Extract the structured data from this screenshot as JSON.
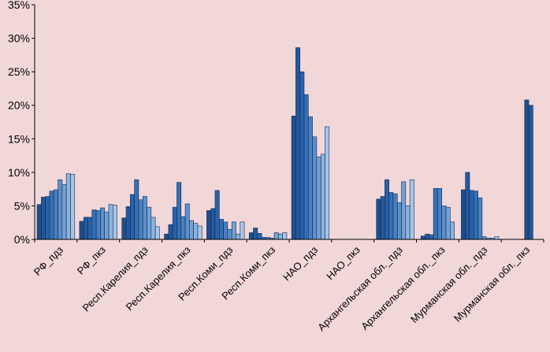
{
  "chart_data": {
    "type": "bar",
    "ylim": [
      0,
      35
    ],
    "yticks": [
      "0%",
      "5%",
      "10%",
      "15%",
      "20%",
      "25%",
      "30%",
      "35%"
    ],
    "categories": [
      "РФ_пдз",
      "РФ_пкз",
      "Респ.Карелия_пдз",
      "Респ.Карелия_пкз",
      "Респ.Коми_пдз",
      "Респ.Коми_пкз",
      "НАО_пдз",
      "НАО_пкз",
      "Архангельская обл._пдз",
      "Архангельская обл._пкз",
      "Мурманская обл._пдз",
      "Мурманская обл._пкз"
    ],
    "series_colors": [
      "#1f4e8c",
      "#24589a",
      "#2a62a8",
      "#3570b5",
      "#4a80c0",
      "#5d90ca",
      "#75a2d3",
      "#8db4dc",
      "#a8c6e5",
      "#c3d8ee"
    ],
    "values": [
      [
        5.2,
        6.3,
        6.4,
        7.2,
        7.4,
        8.9,
        8.2,
        9.8,
        9.7
      ],
      [
        2.7,
        3.3,
        3.3,
        4.4,
        4.3,
        4.7,
        4.1,
        5.2,
        5.1
      ],
      [
        3.2,
        4.9,
        6.7,
        8.9,
        5.9,
        6.4,
        4.8,
        3.3,
        1.9
      ],
      [
        0.8,
        2.2,
        4.8,
        8.5,
        3.4,
        5.3,
        2.8,
        2.4,
        2.0
      ],
      [
        4.3,
        4.6,
        7.3,
        3.0,
        2.6,
        1.5,
        2.6,
        0.8,
        2.6
      ],
      [
        1.0,
        1.7,
        0.9,
        0.3,
        0.3,
        0.2,
        1.0,
        0.8,
        1.0
      ],
      [
        18.4,
        28.6,
        25.0,
        21.6,
        18.3,
        15.3,
        12.3,
        12.7,
        16.8
      ],
      [],
      [
        6.0,
        6.4,
        8.9,
        7.0,
        6.8,
        5.5,
        8.6,
        5.0,
        8.9
      ],
      [
        0.5,
        0.8,
        0.7,
        7.6,
        7.6,
        5.0,
        4.8,
        2.6
      ],
      [
        7.4,
        10.0,
        7.3,
        7.2,
        6.2,
        0.4,
        0.2,
        0.2,
        0.4
      ],
      [
        20.8,
        20.0
      ]
    ]
  }
}
